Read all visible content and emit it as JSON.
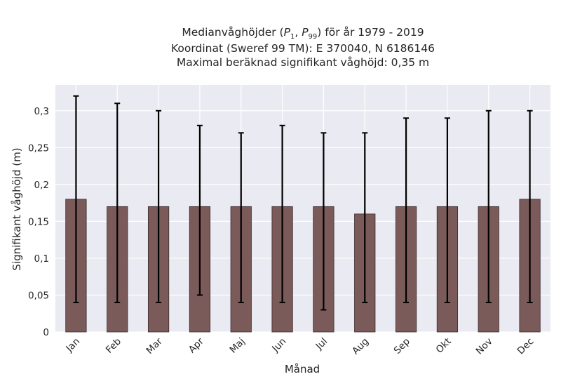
{
  "chart_data": {
    "type": "bar",
    "title_lines": [
      "Koordinat (Sweref 99 TM): E 370040, N 6186146",
      "Maximal beräknad signifikant våghöjd: 0,35 m"
    ],
    "title_main": {
      "prefix": "Medianvåghöjder (",
      "p1": "P",
      "p1_sub": "1",
      "sep": ", ",
      "p2": "P",
      "p2_sub": "99",
      "suffix": ") för år 1979 - 2019"
    },
    "xlabel": "Månad",
    "ylabel": "Signifikant våghöjd (m)",
    "categories": [
      "Jan",
      "Feb",
      "Mar",
      "Apr",
      "Maj",
      "Jun",
      "Jul",
      "Aug",
      "Sep",
      "Okt",
      "Nov",
      "Dec"
    ],
    "values": [
      0.18,
      0.17,
      0.17,
      0.17,
      0.17,
      0.17,
      0.17,
      0.16,
      0.17,
      0.17,
      0.17,
      0.18
    ],
    "error_low": [
      0.04,
      0.04,
      0.04,
      0.05,
      0.04,
      0.04,
      0.03,
      0.04,
      0.04,
      0.04,
      0.04,
      0.04
    ],
    "error_high": [
      0.32,
      0.31,
      0.3,
      0.28,
      0.27,
      0.28,
      0.27,
      0.27,
      0.29,
      0.29,
      0.3,
      0.3
    ],
    "ylim": [
      0,
      0.335
    ],
    "yticks": [
      0,
      0.05,
      0.1,
      0.15,
      0.2,
      0.25,
      0.3
    ],
    "ytick_labels": [
      "0",
      "0,05",
      "0,1",
      "0,15",
      "0,2",
      "0,25",
      "0,3"
    ],
    "grid": true,
    "colors": {
      "background": "#eaeaf2",
      "grid": "#ffffff",
      "bar_fill": "#7b5a5a",
      "bar_edge": "#3a2a2a",
      "error": "#000000"
    }
  }
}
